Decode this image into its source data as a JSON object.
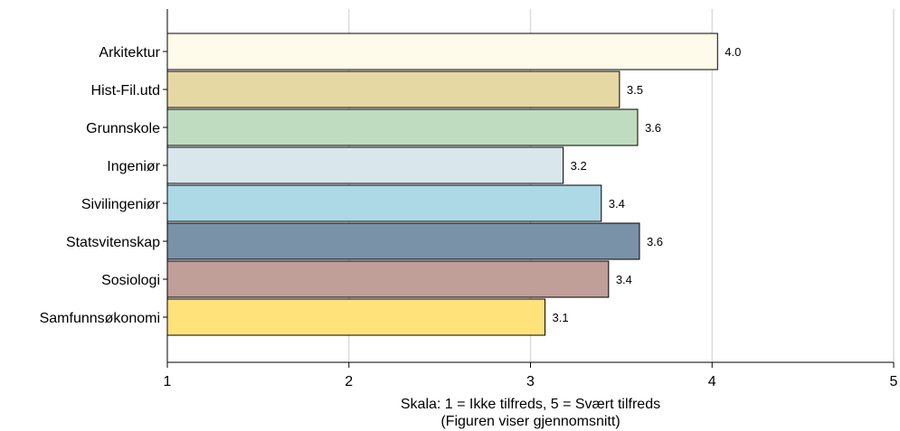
{
  "chart_data": {
    "type": "bar",
    "orientation": "horizontal",
    "categories": [
      "Arkitektur",
      "Hist-Fil.utd",
      "Grunnskole",
      "Ingeniør",
      "Sivilingeniør",
      "Statsvitenskap",
      "Sosiologi",
      "Samfunnsøkonomi"
    ],
    "values": [
      4.03,
      3.49,
      3.59,
      3.18,
      3.39,
      3.6,
      3.43,
      3.08
    ],
    "value_labels": [
      "4.0",
      "3.5",
      "3.6",
      "3.2",
      "3.4",
      "3.6",
      "3.4",
      "3.1"
    ],
    "bar_colors": [
      "#fffbeb",
      "#e6d8a2",
      "#c0dcc0",
      "#d9e6eb",
      "#add8e6",
      "#7a92a8",
      "#bf9f98",
      "#ffe27a"
    ],
    "xlim": [
      1,
      5
    ],
    "xticks": [
      1,
      2,
      3,
      4,
      5
    ],
    "xtick_labels": [
      "1",
      "2",
      "3",
      "4",
      "5"
    ],
    "grid": true,
    "xlabel": "Skala: 1 = Ikke tilfreds, 5 = Svært tilfreds",
    "xlabel2": "(Figuren viser gjennomsnitt)",
    "title": ""
  }
}
